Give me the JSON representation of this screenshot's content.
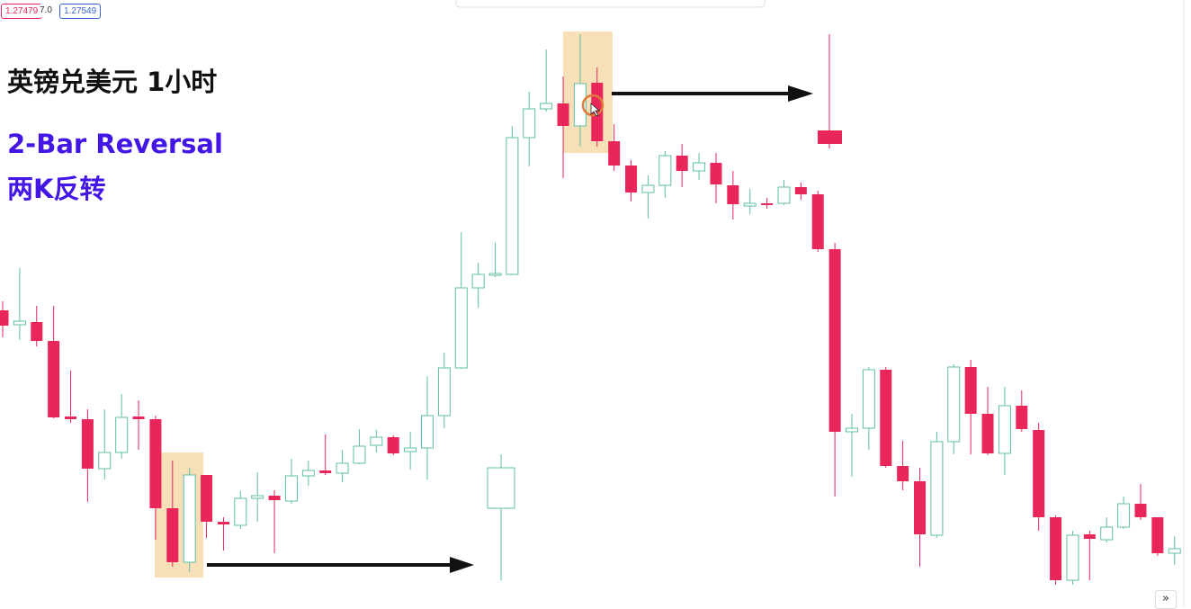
{
  "chart_data": {
    "type": "candlestick",
    "title": "英镑兑美元 1小时",
    "annotations": [
      "2-Bar Reversal",
      "两K反转"
    ],
    "ylim": [
      0,
      675
    ],
    "up_color": "#ffffff",
    "up_border": "#5cbfa6",
    "down_color": "#e8265a",
    "open": [
      330,
      314,
      317,
      296,
      212,
      209,
      154,
      172,
      212,
      209,
      110,
      50,
      147,
      95,
      91,
      121,
      124,
      118,
      146,
      152,
      149,
      160,
      180,
      189,
      173,
      177,
      213,
      266,
      355,
      369,
      370,
      522,
      554,
      560,
      535,
      583,
      518,
      491,
      461,
      469,
      502,
      485,
      494,
      469,
      446,
      449,
      449,
      467,
      459,
      398,
      195,
      199,
      264,
      157,
      140,
      80,
      184,
      267,
      215,
      171,
      224,
      197,
      100,
      30,
      81,
      75,
      89,
      115,
      100,
      60
    ],
    "high": [
      340,
      377,
      335,
      335,
      263,
      220,
      220,
      237,
      230,
      213,
      163,
      155,
      147,
      100,
      129,
      150,
      130,
      165,
      163,
      192,
      175,
      198,
      197,
      191,
      195,
      257,
      283,
      417,
      383,
      405,
      535,
      573,
      620,
      590,
      637,
      600,
      537,
      497,
      480,
      507,
      515,
      505,
      505,
      485,
      465,
      455,
      475,
      472,
      463,
      405,
      215,
      267,
      267,
      185,
      155,
      195,
      270,
      275,
      245,
      245,
      241,
      205,
      102,
      85,
      85,
      100,
      123,
      137,
      100,
      79
    ],
    "low": [
      300,
      297,
      290,
      210,
      205,
      117,
      142,
      165,
      175,
      75,
      45,
      39,
      77,
      63,
      87,
      95,
      60,
      115,
      135,
      147,
      139,
      159,
      172,
      169,
      153,
      142,
      199,
      265,
      333,
      367,
      369,
      490,
      551,
      477,
      512,
      512,
      485,
      451,
      432,
      455,
      467,
      475,
      449,
      431,
      437,
      443,
      447,
      453,
      395,
      123,
      145,
      175,
      155,
      130,
      45,
      77,
      170,
      170,
      169,
      147,
      195,
      85,
      25,
      25,
      30,
      72,
      87,
      97,
      57,
      47
    ],
    "close": [
      313,
      318,
      296,
      211,
      209,
      154,
      172,
      211,
      209,
      110,
      50,
      147,
      95,
      92,
      121,
      124,
      119,
      146,
      152,
      149,
      160,
      179,
      189,
      171,
      177,
      213,
      266,
      355,
      370,
      371,
      522,
      554,
      560,
      535,
      582,
      518,
      491,
      461,
      469,
      502,
      485,
      494,
      470,
      448,
      449,
      447,
      467,
      459,
      398,
      195,
      199,
      264,
      157,
      140,
      81,
      184,
      267,
      215,
      171,
      224,
      198,
      100,
      30,
      80,
      76,
      89,
      115,
      100,
      60,
      65
    ]
  },
  "price_labels": [
    "1.27479",
    "7.0",
    "1.27549"
  ],
  "controls": {
    "scroll": "»"
  }
}
